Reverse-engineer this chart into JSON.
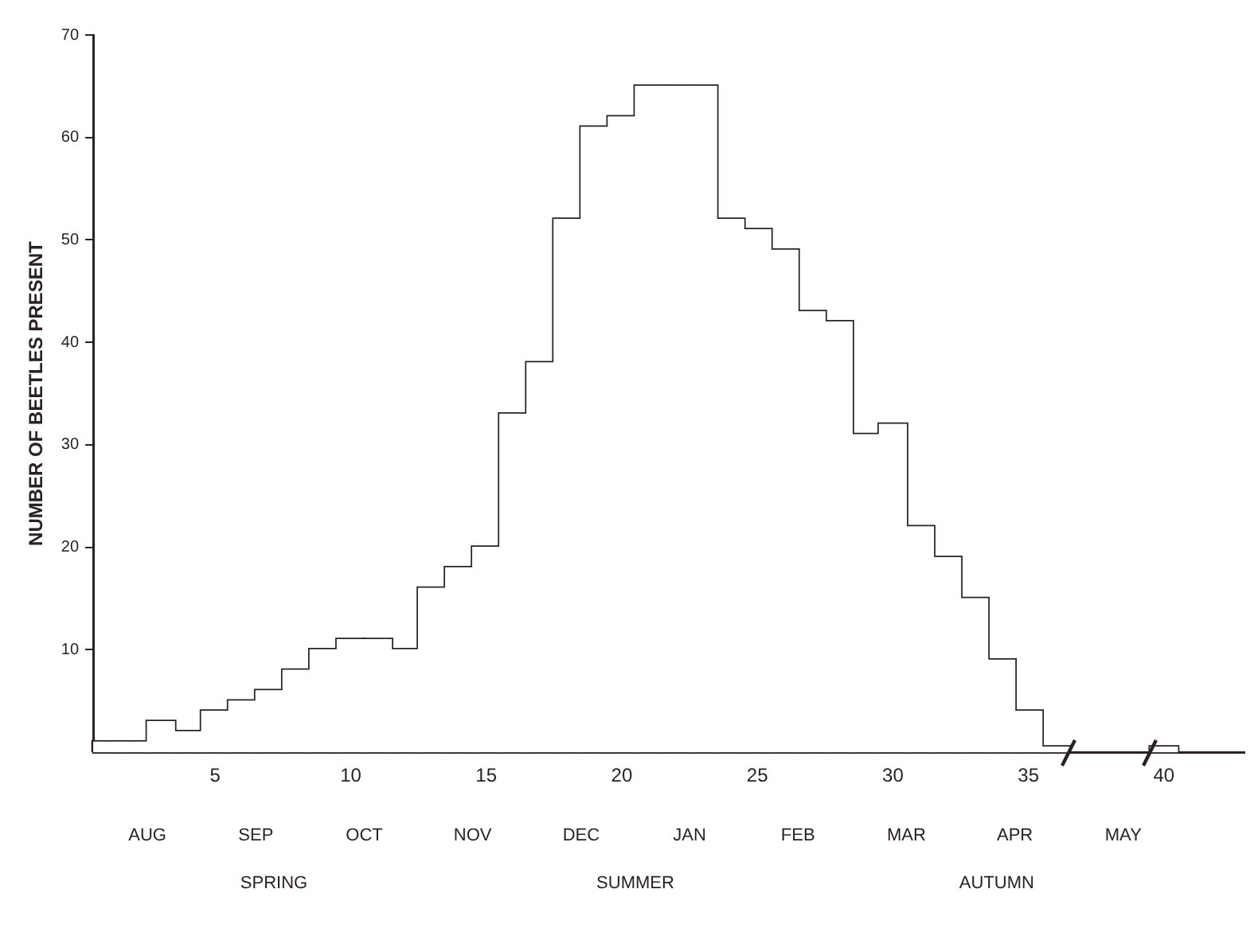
{
  "chart_data": {
    "type": "histogram",
    "ylabel": "NUMBER OF BEETLES PRESENT",
    "bins": [
      0.5,
      1.5,
      2.5,
      3.5,
      4.5,
      5.5,
      6.5,
      7.5,
      8.5,
      9.5,
      10.5,
      11.5,
      12.5,
      13.5,
      14.5,
      15.5,
      16.5,
      17.5,
      18.5,
      19.5,
      20.5,
      21.5,
      22.5,
      23.5,
      24.5,
      25.5,
      26.5,
      27.5,
      28.5,
      29.5,
      30.5,
      31.5,
      32.5,
      33.5,
      34.5,
      35.5,
      36.5,
      37.5,
      38.5,
      39.5,
      40.5
    ],
    "values": [
      1,
      1,
      3,
      2,
      4,
      5,
      6,
      8,
      10,
      11,
      11,
      10,
      16,
      18,
      20,
      33,
      38,
      52,
      61,
      62,
      65,
      65,
      65,
      52,
      51,
      49,
      43,
      42,
      31,
      32,
      22,
      19,
      15,
      9,
      4,
      0.5,
      null,
      null,
      null,
      0.5
    ],
    "color": "#ffffff",
    "xlim": [
      0.5,
      43
    ],
    "xticks": [
      5,
      10,
      15,
      20,
      25,
      30,
      35,
      40
    ],
    "ylim": [
      0,
      70
    ],
    "yticks": [
      10,
      20,
      30,
      40,
      50,
      60,
      70
    ],
    "grid": false,
    "annotations": [
      "AUG",
      "SEP",
      "OCT",
      "NOV",
      "DEC",
      "JAN",
      "FEB",
      "MAR",
      "APR",
      "MAY",
      "SPRING",
      "SUMMER",
      "AUTUMN"
    ]
  }
}
